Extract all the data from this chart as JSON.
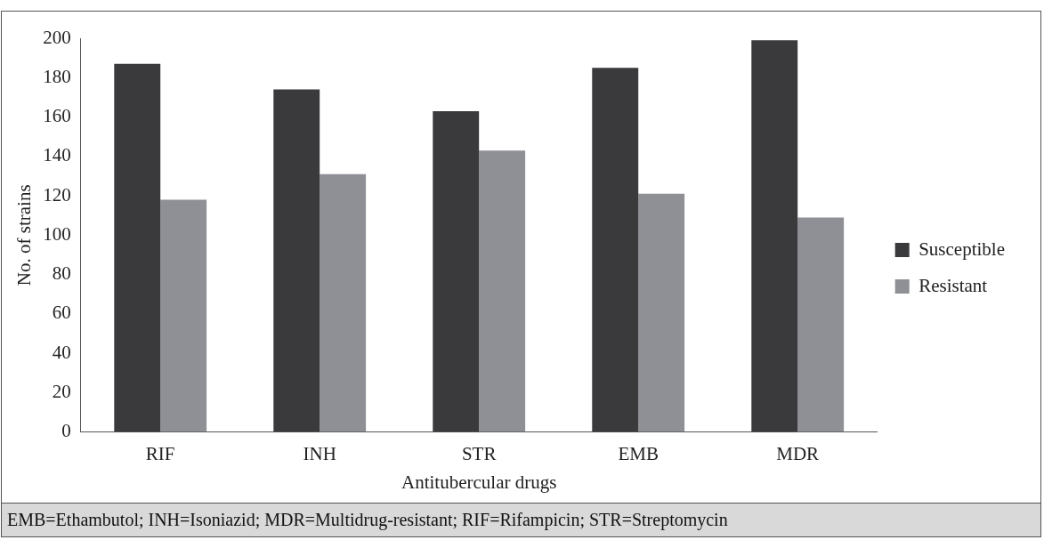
{
  "chart_data": {
    "type": "bar",
    "xlabel": "Antitubercular drugs",
    "ylabel": "No. of strains",
    "categories": [
      "RIF",
      "INH",
      "STR",
      "EMB",
      "MDR"
    ],
    "series": [
      {
        "name": "Susceptible",
        "color": "#3a3a3c",
        "values": [
          187,
          174,
          163,
          185,
          199
        ]
      },
      {
        "name": "Resistant",
        "color": "#8e9096",
        "values": [
          118,
          131,
          143,
          121,
          109
        ]
      }
    ],
    "ylim": [
      0,
      200
    ],
    "yticks": [
      0,
      20,
      40,
      60,
      80,
      100,
      120,
      140,
      160,
      180,
      200
    ],
    "grid": false,
    "legend": "right",
    "annotations": [
      "EMB=Ethambutol; INH=Isoniazid; MDR=Multidrug-resistant; RIF=Rifampicin; STR=Streptomycin"
    ]
  }
}
